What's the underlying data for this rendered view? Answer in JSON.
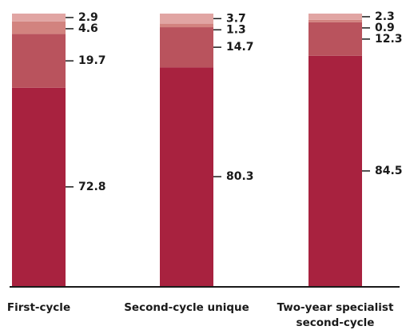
{
  "chart_data": {
    "type": "bar",
    "stacked": true,
    "categories": [
      "First-cycle",
      "Second-cycle unique",
      "Two-year specialist second-cycle"
    ],
    "category_labels": [
      [
        "First-cycle"
      ],
      [
        "Second-cycle unique"
      ],
      [
        "Two-year specialist",
        "second-cycle"
      ]
    ],
    "series": [
      {
        "values": [
          72.8,
          80.3,
          84.5
        ],
        "color": "#a8223f"
      },
      {
        "values": [
          19.7,
          14.7,
          12.3
        ],
        "color": "#b9535d"
      },
      {
        "values": [
          4.6,
          1.3,
          0.9
        ],
        "color": "#d2837f"
      },
      {
        "values": [
          2.9,
          3.7,
          2.3
        ],
        "color": "#e1a5a3"
      }
    ],
    "value_labels": [
      [
        "72.8",
        "19.7",
        "4.6",
        "2.9"
      ],
      [
        "80.3",
        "14.7",
        "1.3",
        "3.7"
      ],
      [
        "84.5",
        "12.3",
        "0.9",
        "2.3"
      ]
    ],
    "ylim": [
      0,
      100
    ],
    "grid": false,
    "legend": "none"
  }
}
